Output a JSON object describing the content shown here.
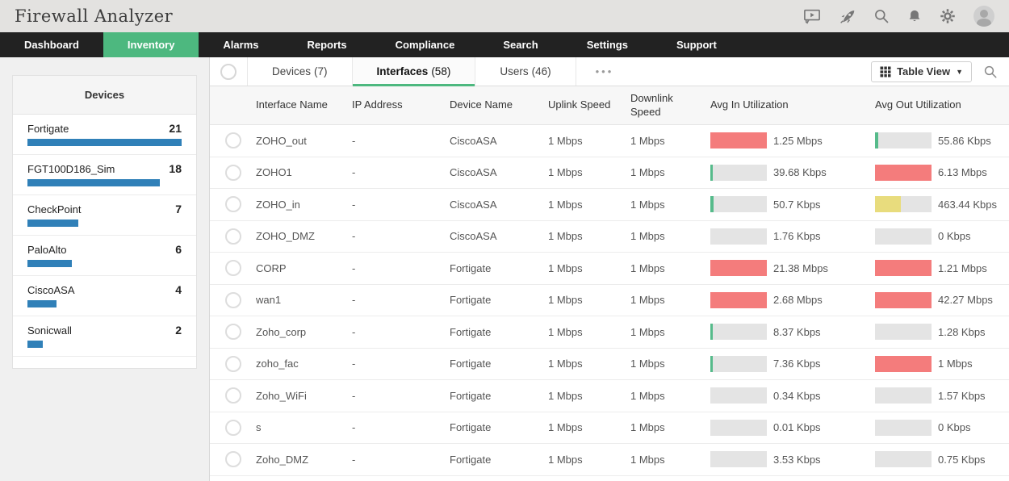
{
  "header": {
    "title": "Firewall Analyzer",
    "icons": [
      "presentation-icon",
      "rocket-icon",
      "search-icon",
      "bell-icon",
      "gear-icon",
      "avatar"
    ]
  },
  "nav": {
    "active_color": "#4db87f",
    "items": [
      {
        "label": "Dashboard",
        "active": false
      },
      {
        "label": "Inventory",
        "active": true
      },
      {
        "label": "Alarms",
        "active": false
      },
      {
        "label": "Reports",
        "active": false
      },
      {
        "label": "Compliance",
        "active": false
      },
      {
        "label": "Search",
        "active": false
      },
      {
        "label": "Settings",
        "active": false
      },
      {
        "label": "Support",
        "active": false
      }
    ]
  },
  "sidebar": {
    "title": "Devices",
    "bar_color": "#3080b8",
    "items": [
      {
        "name": "Fortigate",
        "count": "21",
        "bar_pct": 100
      },
      {
        "name": "FGT100D186_Sim",
        "count": "18",
        "bar_pct": 86
      },
      {
        "name": "CheckPoint",
        "count": "7",
        "bar_pct": 33
      },
      {
        "name": "PaloAlto",
        "count": "6",
        "bar_pct": 29
      },
      {
        "name": "CiscoASA",
        "count": "4",
        "bar_pct": 19
      },
      {
        "name": "Sonicwall",
        "count": "2",
        "bar_pct": 10
      }
    ]
  },
  "tabs": {
    "items": [
      {
        "label": "Devices",
        "count": "(7)",
        "active": false
      },
      {
        "label": "Interfaces",
        "count": "(58)",
        "active": true
      },
      {
        "label": "Users",
        "count": "(46)",
        "active": false
      }
    ],
    "more_label": "•••",
    "view_button_label": "Table View"
  },
  "table": {
    "columns": {
      "interface": "Interface Name",
      "ip": "IP Address",
      "device": "Device Name",
      "uplink": "Uplink Speed",
      "downlink": "Downlink Speed",
      "avg_in": "Avg In Utilization",
      "avg_out": "Avg Out Utilization"
    },
    "bar_colors": {
      "red": "#f47c7c",
      "green": "#56bb8b",
      "yellow": "#e8dc7d",
      "track": "#e4e4e4"
    },
    "rows": [
      {
        "name": "ZOHO_out",
        "ip": "-",
        "device": "CiscoASA",
        "uplink": "1 Mbps",
        "downlink": "1 Mbps",
        "in": {
          "value": "1.25 Mbps",
          "pct": 100,
          "color": "red"
        },
        "out": {
          "value": "55.86 Kbps",
          "pct": 6,
          "color": "green"
        }
      },
      {
        "name": "ZOHO1",
        "ip": "-",
        "device": "CiscoASA",
        "uplink": "1 Mbps",
        "downlink": "1 Mbps",
        "in": {
          "value": "39.68 Kbps",
          "pct": 4,
          "color": "green"
        },
        "out": {
          "value": "6.13 Mbps",
          "pct": 100,
          "color": "red"
        }
      },
      {
        "name": "ZOHO_in",
        "ip": "-",
        "device": "CiscoASA",
        "uplink": "1 Mbps",
        "downlink": "1 Mbps",
        "in": {
          "value": "50.7 Kbps",
          "pct": 5,
          "color": "green"
        },
        "out": {
          "value": "463.44 Kbps",
          "pct": 46,
          "color": "yellow"
        }
      },
      {
        "name": "ZOHO_DMZ",
        "ip": "-",
        "device": "CiscoASA",
        "uplink": "1 Mbps",
        "downlink": "1 Mbps",
        "in": {
          "value": "1.76 Kbps",
          "pct": 0,
          "color": "none"
        },
        "out": {
          "value": "0 Kbps",
          "pct": 0,
          "color": "none"
        }
      },
      {
        "name": "CORP",
        "ip": "-",
        "device": "Fortigate",
        "uplink": "1 Mbps",
        "downlink": "1 Mbps",
        "in": {
          "value": "21.38 Mbps",
          "pct": 100,
          "color": "red"
        },
        "out": {
          "value": "1.21 Mbps",
          "pct": 100,
          "color": "red"
        }
      },
      {
        "name": "wan1",
        "ip": "-",
        "device": "Fortigate",
        "uplink": "1 Mbps",
        "downlink": "1 Mbps",
        "in": {
          "value": "2.68 Mbps",
          "pct": 100,
          "color": "red"
        },
        "out": {
          "value": "42.27 Mbps",
          "pct": 100,
          "color": "red"
        }
      },
      {
        "name": "Zoho_corp",
        "ip": "-",
        "device": "Fortigate",
        "uplink": "1 Mbps",
        "downlink": "1 Mbps",
        "in": {
          "value": "8.37 Kbps",
          "pct": 2,
          "color": "green"
        },
        "out": {
          "value": "1.28 Kbps",
          "pct": 0,
          "color": "none"
        }
      },
      {
        "name": "zoho_fac",
        "ip": "-",
        "device": "Fortigate",
        "uplink": "1 Mbps",
        "downlink": "1 Mbps",
        "in": {
          "value": "7.36 Kbps",
          "pct": 2,
          "color": "green"
        },
        "out": {
          "value": "1 Mbps",
          "pct": 100,
          "color": "red"
        }
      },
      {
        "name": "Zoho_WiFi",
        "ip": "-",
        "device": "Fortigate",
        "uplink": "1 Mbps",
        "downlink": "1 Mbps",
        "in": {
          "value": "0.34 Kbps",
          "pct": 0,
          "color": "none"
        },
        "out": {
          "value": "1.57 Kbps",
          "pct": 0,
          "color": "none"
        }
      },
      {
        "name": "s",
        "ip": "-",
        "device": "Fortigate",
        "uplink": "1 Mbps",
        "downlink": "1 Mbps",
        "in": {
          "value": "0.01 Kbps",
          "pct": 0,
          "color": "none"
        },
        "out": {
          "value": "0 Kbps",
          "pct": 0,
          "color": "none"
        }
      },
      {
        "name": "Zoho_DMZ",
        "ip": "-",
        "device": "Fortigate",
        "uplink": "1 Mbps",
        "downlink": "1 Mbps",
        "in": {
          "value": "3.53 Kbps",
          "pct": 0,
          "color": "none"
        },
        "out": {
          "value": "0.75 Kbps",
          "pct": 0,
          "color": "none"
        }
      }
    ]
  }
}
